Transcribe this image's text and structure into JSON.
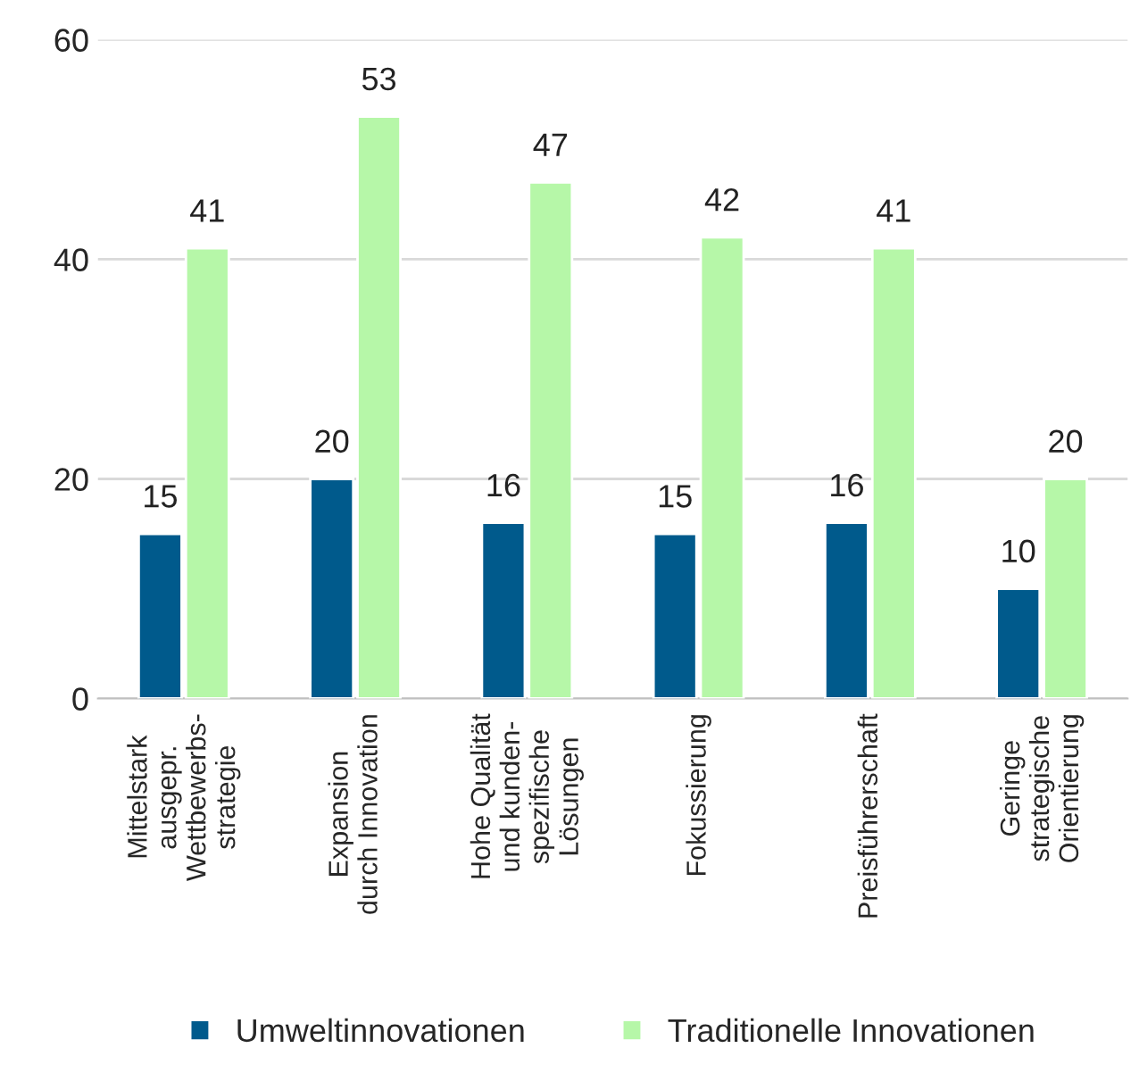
{
  "chart_data": {
    "type": "bar",
    "categories": [
      "Mittelstark\nausgepr.\nWettbewerbs-\nstrategie",
      "Expansion\ndurch Innovation",
      "Hohe Qualität\nund kunden-\nspezifische\nLösungen",
      "Fokussierung",
      "Preisführerschaft",
      "Geringe\nstrategische\nOrientierung"
    ],
    "series": [
      {
        "name": "Umweltinnovationen",
        "color": "#005a8c",
        "values": [
          15,
          20,
          16,
          15,
          16,
          10
        ]
      },
      {
        "name": "Traditionelle Innovationen",
        "color": "#b6f7a8",
        "values": [
          41,
          53,
          47,
          42,
          41,
          20
        ]
      }
    ],
    "ylim": [
      0,
      60
    ],
    "yticks": [
      0,
      20,
      40,
      60
    ],
    "grid": "y",
    "legend": "bottom",
    "data_labels": true
  }
}
